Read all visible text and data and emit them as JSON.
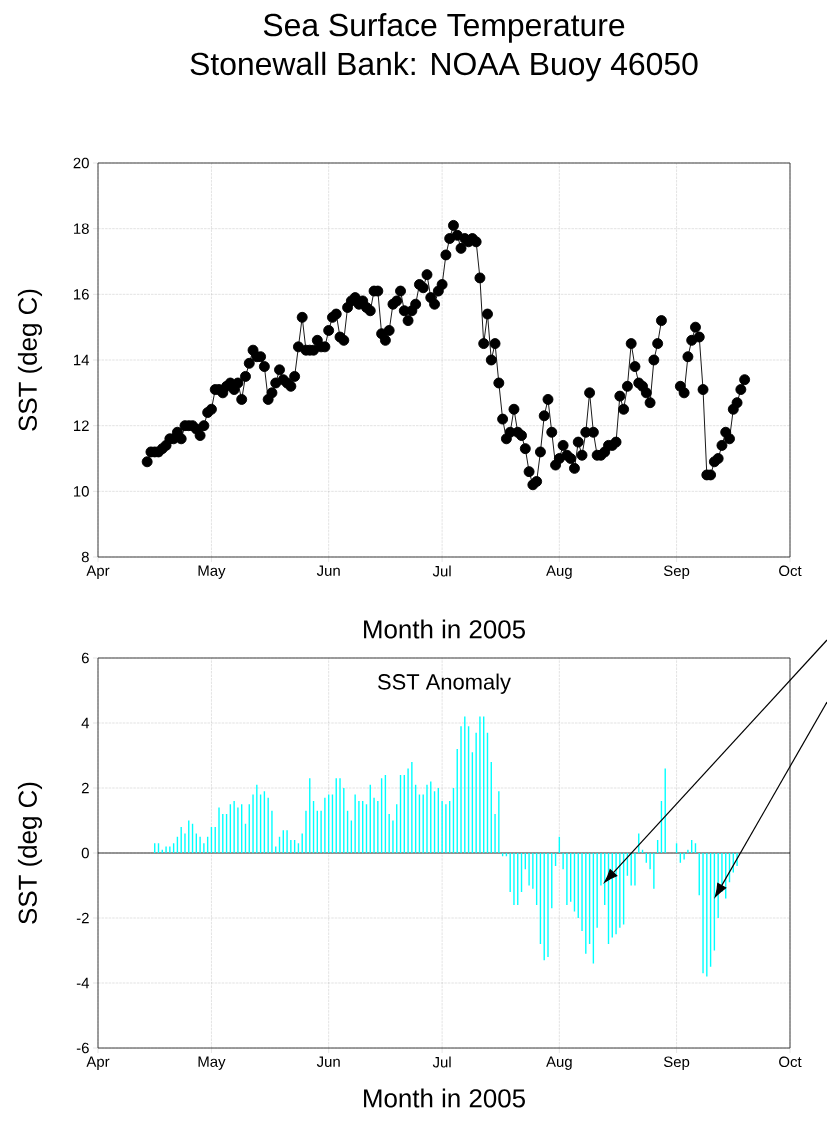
{
  "chart_data": [
    {
      "type": "line",
      "title": "Sea Surface Temperature",
      "subtitle": "Stonewall Bank: NOAA Buoy 46050",
      "xlabel": "Month in 2005",
      "ylabel": "SST (deg C)",
      "color": "#000000",
      "marker": "circle",
      "line_style": "solid",
      "grid": true,
      "xlim": [
        "2005-04-01",
        "2005-10-01"
      ],
      "xticks": [
        {
          "value": "2005-04-01",
          "label": "Apr"
        },
        {
          "value": "2005-05-01",
          "label": "May"
        },
        {
          "value": "2005-06-01",
          "label": "Jun"
        },
        {
          "value": "2005-07-01",
          "label": "Jul"
        },
        {
          "value": "2005-08-01",
          "label": "Aug"
        },
        {
          "value": "2005-09-01",
          "label": "Sep"
        },
        {
          "value": "2005-10-01",
          "label": "Oct"
        }
      ],
      "ylim": [
        8,
        20
      ],
      "yticks": [
        8,
        10,
        12,
        14,
        16,
        18,
        20
      ],
      "x": [
        "2005-04-14",
        "2005-04-15",
        "2005-04-16",
        "2005-04-17",
        "2005-04-18",
        "2005-04-19",
        "2005-04-20",
        "2005-04-21",
        "2005-04-22",
        "2005-04-23",
        "2005-04-24",
        "2005-04-25",
        "2005-04-26",
        "2005-04-27",
        "2005-04-28",
        "2005-04-29",
        "2005-04-30",
        "2005-05-01",
        "2005-05-02",
        "2005-05-03",
        "2005-05-04",
        "2005-05-05",
        "2005-05-06",
        "2005-05-07",
        "2005-05-08",
        "2005-05-09",
        "2005-05-10",
        "2005-05-11",
        "2005-05-12",
        "2005-05-13",
        "2005-05-14",
        "2005-05-15",
        "2005-05-16",
        "2005-05-17",
        "2005-05-18",
        "2005-05-19",
        "2005-05-20",
        "2005-05-21",
        "2005-05-22",
        "2005-05-23",
        "2005-05-24",
        "2005-05-25",
        "2005-05-26",
        "2005-05-27",
        "2005-05-28",
        "2005-05-29",
        "2005-05-30",
        "2005-05-31",
        "2005-06-01",
        "2005-06-02",
        "2005-06-03",
        "2005-06-04",
        "2005-06-05",
        "2005-06-06",
        "2005-06-07",
        "2005-06-08",
        "2005-06-09",
        "2005-06-10",
        "2005-06-11",
        "2005-06-12",
        "2005-06-13",
        "2005-06-14",
        "2005-06-15",
        "2005-06-16",
        "2005-06-17",
        "2005-06-18",
        "2005-06-19",
        "2005-06-20",
        "2005-06-21",
        "2005-06-22",
        "2005-06-23",
        "2005-06-24",
        "2005-06-25",
        "2005-06-26",
        "2005-06-27",
        "2005-06-28",
        "2005-06-29",
        "2005-06-30",
        "2005-07-01",
        "2005-07-02",
        "2005-07-03",
        "2005-07-04",
        "2005-07-05",
        "2005-07-06",
        "2005-07-07",
        "2005-07-08",
        "2005-07-09",
        "2005-07-10",
        "2005-07-11",
        "2005-07-12",
        "2005-07-13",
        "2005-07-14",
        "2005-07-15",
        "2005-07-16",
        "2005-07-17",
        "2005-07-18",
        "2005-07-19",
        "2005-07-20",
        "2005-07-21",
        "2005-07-22",
        "2005-07-23",
        "2005-07-24",
        "2005-07-25",
        "2005-07-26",
        "2005-07-27",
        "2005-07-28",
        "2005-07-29",
        "2005-07-30",
        "2005-07-31",
        "2005-08-01",
        "2005-08-02",
        "2005-08-03",
        "2005-08-04",
        "2005-08-05",
        "2005-08-06",
        "2005-08-07",
        "2005-08-08",
        "2005-08-09",
        "2005-08-10",
        "2005-08-11",
        "2005-08-12",
        "2005-08-13",
        "2005-08-14",
        "2005-08-15",
        "2005-08-16",
        "2005-08-17",
        "2005-08-18",
        "2005-08-19",
        "2005-08-20",
        "2005-08-21",
        "2005-08-22",
        "2005-08-23",
        "2005-08-24",
        "2005-08-25",
        "2005-08-26",
        "2005-08-27",
        "2005-08-28",
        "2005-08-30",
        "2005-09-02",
        "2005-09-03",
        "2005-09-04",
        "2005-09-05",
        "2005-09-06",
        "2005-09-07",
        "2005-09-08",
        "2005-09-09",
        "2005-09-10",
        "2005-09-11",
        "2005-09-12",
        "2005-09-13",
        "2005-09-14",
        "2005-09-15",
        "2005-09-16",
        "2005-09-17",
        "2005-09-18",
        "2005-09-19"
      ],
      "values": [
        10.9,
        11.2,
        11.2,
        11.2,
        11.3,
        11.4,
        11.6,
        11.6,
        11.8,
        11.6,
        12.0,
        12.0,
        12.0,
        11.9,
        11.7,
        12.0,
        12.4,
        12.5,
        13.1,
        13.1,
        13.0,
        13.2,
        13.3,
        13.1,
        13.3,
        12.8,
        13.5,
        13.9,
        14.3,
        14.1,
        14.1,
        13.8,
        12.8,
        13.0,
        13.3,
        13.7,
        13.4,
        13.3,
        13.2,
        13.5,
        14.4,
        15.3,
        14.3,
        14.3,
        14.3,
        14.6,
        14.4,
        14.4,
        14.9,
        15.3,
        15.4,
        14.7,
        14.6,
        15.6,
        15.8,
        15.9,
        15.7,
        15.8,
        15.6,
        15.5,
        16.1,
        16.1,
        14.8,
        14.6,
        14.9,
        15.7,
        15.8,
        16.1,
        15.5,
        15.2,
        15.5,
        15.7,
        16.3,
        16.2,
        16.6,
        15.9,
        15.7,
        16.1,
        16.3,
        17.2,
        17.7,
        18.1,
        17.8,
        17.4,
        17.7,
        17.6,
        17.7,
        17.6,
        16.5,
        14.5,
        15.4,
        14.0,
        14.5,
        13.3,
        12.2,
        11.6,
        11.8,
        12.5,
        11.8,
        11.7,
        11.3,
        10.6,
        10.2,
        10.3,
        11.2,
        12.3,
        12.8,
        11.8,
        10.8,
        11.0,
        11.4,
        11.1,
        11.0,
        10.7,
        11.5,
        11.1,
        11.8,
        13.0,
        11.8,
        11.1,
        11.1,
        11.2,
        11.4,
        11.4,
        11.5,
        12.9,
        12.5,
        13.2,
        14.5,
        13.8,
        13.3,
        13.2,
        13.0,
        12.7,
        14.0,
        14.5,
        15.2,
        null,
        13.2,
        13.0,
        14.1,
        14.6,
        15.0,
        14.7,
        13.1,
        10.5,
        10.5,
        10.9,
        11.0,
        11.4,
        11.8,
        11.6,
        12.5,
        12.7,
        13.1,
        13.4
      ]
    },
    {
      "type": "bar",
      "title": "SST Anomaly",
      "xlabel": "Month in 2005",
      "ylabel": "SST (deg C)",
      "color": "#00ffff",
      "grid": true,
      "xlim": [
        "2005-04-01",
        "2005-10-01"
      ],
      "xticks": [
        {
          "value": "2005-04-01",
          "label": "Apr"
        },
        {
          "value": "2005-05-01",
          "label": "May"
        },
        {
          "value": "2005-06-01",
          "label": "Jun"
        },
        {
          "value": "2005-07-01",
          "label": "Jul"
        },
        {
          "value": "2005-08-01",
          "label": "Aug"
        },
        {
          "value": "2005-09-01",
          "label": "Sep"
        },
        {
          "value": "2005-10-01",
          "label": "Oct"
        }
      ],
      "ylim": [
        -6,
        6
      ],
      "yticks": [
        -6,
        -4,
        -2,
        0,
        2,
        4,
        6
      ],
      "ref_lines": [
        {
          "axis": "y",
          "value": 0,
          "color": "#000000"
        }
      ],
      "x": [
        "2005-04-16",
        "2005-04-17",
        "2005-04-18",
        "2005-04-19",
        "2005-04-20",
        "2005-04-21",
        "2005-04-22",
        "2005-04-23",
        "2005-04-24",
        "2005-04-25",
        "2005-04-26",
        "2005-04-27",
        "2005-04-28",
        "2005-04-29",
        "2005-04-30",
        "2005-05-01",
        "2005-05-02",
        "2005-05-03",
        "2005-05-04",
        "2005-05-05",
        "2005-05-06",
        "2005-05-07",
        "2005-05-08",
        "2005-05-09",
        "2005-05-10",
        "2005-05-11",
        "2005-05-12",
        "2005-05-13",
        "2005-05-14",
        "2005-05-15",
        "2005-05-16",
        "2005-05-17",
        "2005-05-18",
        "2005-05-19",
        "2005-05-20",
        "2005-05-21",
        "2005-05-22",
        "2005-05-23",
        "2005-05-24",
        "2005-05-25",
        "2005-05-26",
        "2005-05-27",
        "2005-05-28",
        "2005-05-29",
        "2005-05-30",
        "2005-05-31",
        "2005-06-01",
        "2005-06-02",
        "2005-06-03",
        "2005-06-04",
        "2005-06-05",
        "2005-06-06",
        "2005-06-07",
        "2005-06-08",
        "2005-06-09",
        "2005-06-10",
        "2005-06-11",
        "2005-06-12",
        "2005-06-13",
        "2005-06-14",
        "2005-06-15",
        "2005-06-16",
        "2005-06-17",
        "2005-06-18",
        "2005-06-19",
        "2005-06-20",
        "2005-06-21",
        "2005-06-22",
        "2005-06-23",
        "2005-06-24",
        "2005-06-25",
        "2005-06-26",
        "2005-06-27",
        "2005-06-28",
        "2005-06-29",
        "2005-06-30",
        "2005-07-01",
        "2005-07-02",
        "2005-07-03",
        "2005-07-04",
        "2005-07-05",
        "2005-07-06",
        "2005-07-07",
        "2005-07-08",
        "2005-07-09",
        "2005-07-10",
        "2005-07-11",
        "2005-07-12",
        "2005-07-13",
        "2005-07-14",
        "2005-07-15",
        "2005-07-16",
        "2005-07-17",
        "2005-07-18",
        "2005-07-19",
        "2005-07-20",
        "2005-07-21",
        "2005-07-22",
        "2005-07-23",
        "2005-07-24",
        "2005-07-25",
        "2005-07-26",
        "2005-07-27",
        "2005-07-28",
        "2005-07-29",
        "2005-07-30",
        "2005-07-31",
        "2005-08-01",
        "2005-08-02",
        "2005-08-03",
        "2005-08-04",
        "2005-08-05",
        "2005-08-06",
        "2005-08-07",
        "2005-08-08",
        "2005-08-09",
        "2005-08-10",
        "2005-08-11",
        "2005-08-12",
        "2005-08-13",
        "2005-08-14",
        "2005-08-15",
        "2005-08-16",
        "2005-08-17",
        "2005-08-18",
        "2005-08-19",
        "2005-08-20",
        "2005-08-21",
        "2005-08-22",
        "2005-08-23",
        "2005-08-24",
        "2005-08-25",
        "2005-08-26",
        "2005-08-27",
        "2005-08-28",
        "2005-08-29",
        "2005-09-01",
        "2005-09-02",
        "2005-09-03",
        "2005-09-04",
        "2005-09-05",
        "2005-09-06",
        "2005-09-07",
        "2005-09-08",
        "2005-09-09",
        "2005-09-10",
        "2005-09-11",
        "2005-09-12",
        "2005-09-13",
        "2005-09-14",
        "2005-09-15",
        "2005-09-16",
        "2005-09-17"
      ],
      "values": [
        0.3,
        0.3,
        0.1,
        0.2,
        0.2,
        0.3,
        0.5,
        0.8,
        0.6,
        1.0,
        0.9,
        0.6,
        0.5,
        0.3,
        0.5,
        0.8,
        0.8,
        1.4,
        1.2,
        1.2,
        1.5,
        1.6,
        1.4,
        1.5,
        0.9,
        1.5,
        1.8,
        2.1,
        1.8,
        1.9,
        1.7,
        1.3,
        0.2,
        0.5,
        0.7,
        0.7,
        0.4,
        0.4,
        0.3,
        0.6,
        1.3,
        2.3,
        1.6,
        1.3,
        1.3,
        1.7,
        1.8,
        1.8,
        2.3,
        2.3,
        2.0,
        1.3,
        1.0,
        1.8,
        1.6,
        1.6,
        1.5,
        2.1,
        1.7,
        1.6,
        2.3,
        2.4,
        1.2,
        1.0,
        1.5,
        2.4,
        2.4,
        2.6,
        2.8,
        2.1,
        1.8,
        1.8,
        2.1,
        2.2,
        1.9,
        2.0,
        1.6,
        1.5,
        1.6,
        2.0,
        3.2,
        3.9,
        4.2,
        3.9,
        3.1,
        3.7,
        4.2,
        4.2,
        3.7,
        2.8,
        1.2,
        1.9,
        -0.1,
        -0.1,
        -1.2,
        -1.6,
        -1.6,
        -1.2,
        -0.5,
        -1.0,
        -1.1,
        -1.6,
        -2.8,
        -3.3,
        -3.2,
        -1.7,
        -0.4,
        0.5,
        -0.5,
        -1.6,
        -1.5,
        -1.8,
        -2.0,
        -2.4,
        -3.1,
        -2.8,
        -3.4,
        -2.3,
        -1.0,
        -1.6,
        -2.8,
        -2.6,
        -2.5,
        -2.3,
        -2.2,
        -0.7,
        -1.0,
        -1.0,
        0.6,
        0.1,
        -0.3,
        -0.5,
        -1.1,
        0.4,
        1.6,
        2.6,
        0.3,
        -0.3,
        -0.2,
        0.1,
        0.4,
        0.3,
        -1.3,
        -3.7,
        -3.8,
        -3.5,
        -3.0,
        -2.0,
        -1.2,
        -1.4,
        -0.9,
        -0.6,
        -0.4
      ]
    }
  ]
}
